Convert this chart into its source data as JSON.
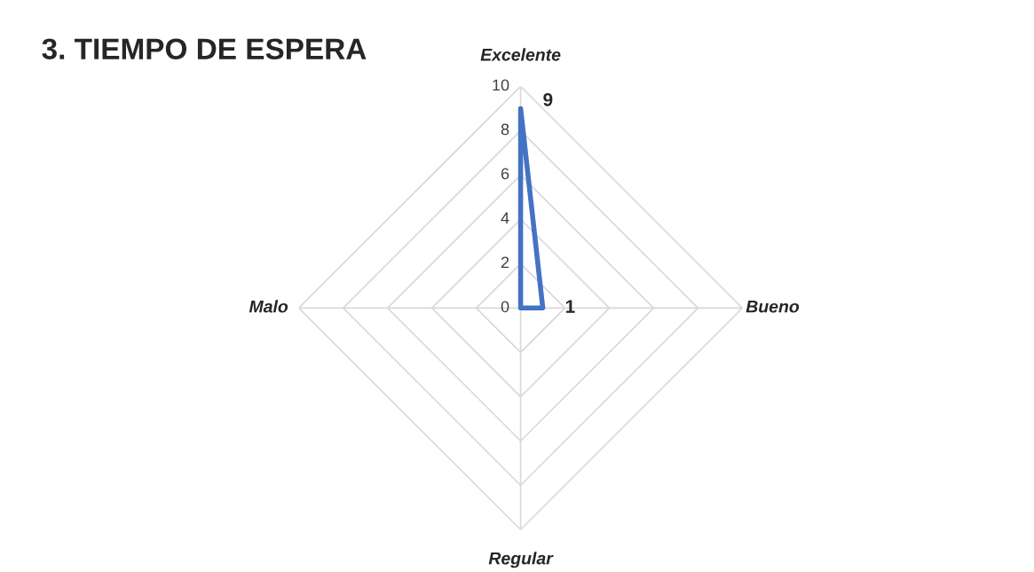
{
  "chart_data": {
    "type": "radar",
    "title": "3. TIEMPO DE ESPERA",
    "categories": [
      "Excelente",
      "Bueno",
      "Regular",
      "Malo"
    ],
    "series": [
      {
        "color": "#4472c4",
        "values": [
          9,
          1,
          0,
          0
        ],
        "value_labels": [
          "9",
          "1",
          null,
          null
        ]
      }
    ],
    "ylim": [
      0,
      10
    ],
    "yticks": [
      0,
      2,
      4,
      6,
      8,
      10
    ],
    "grid": true,
    "marker": "none",
    "line_style": "solid"
  }
}
